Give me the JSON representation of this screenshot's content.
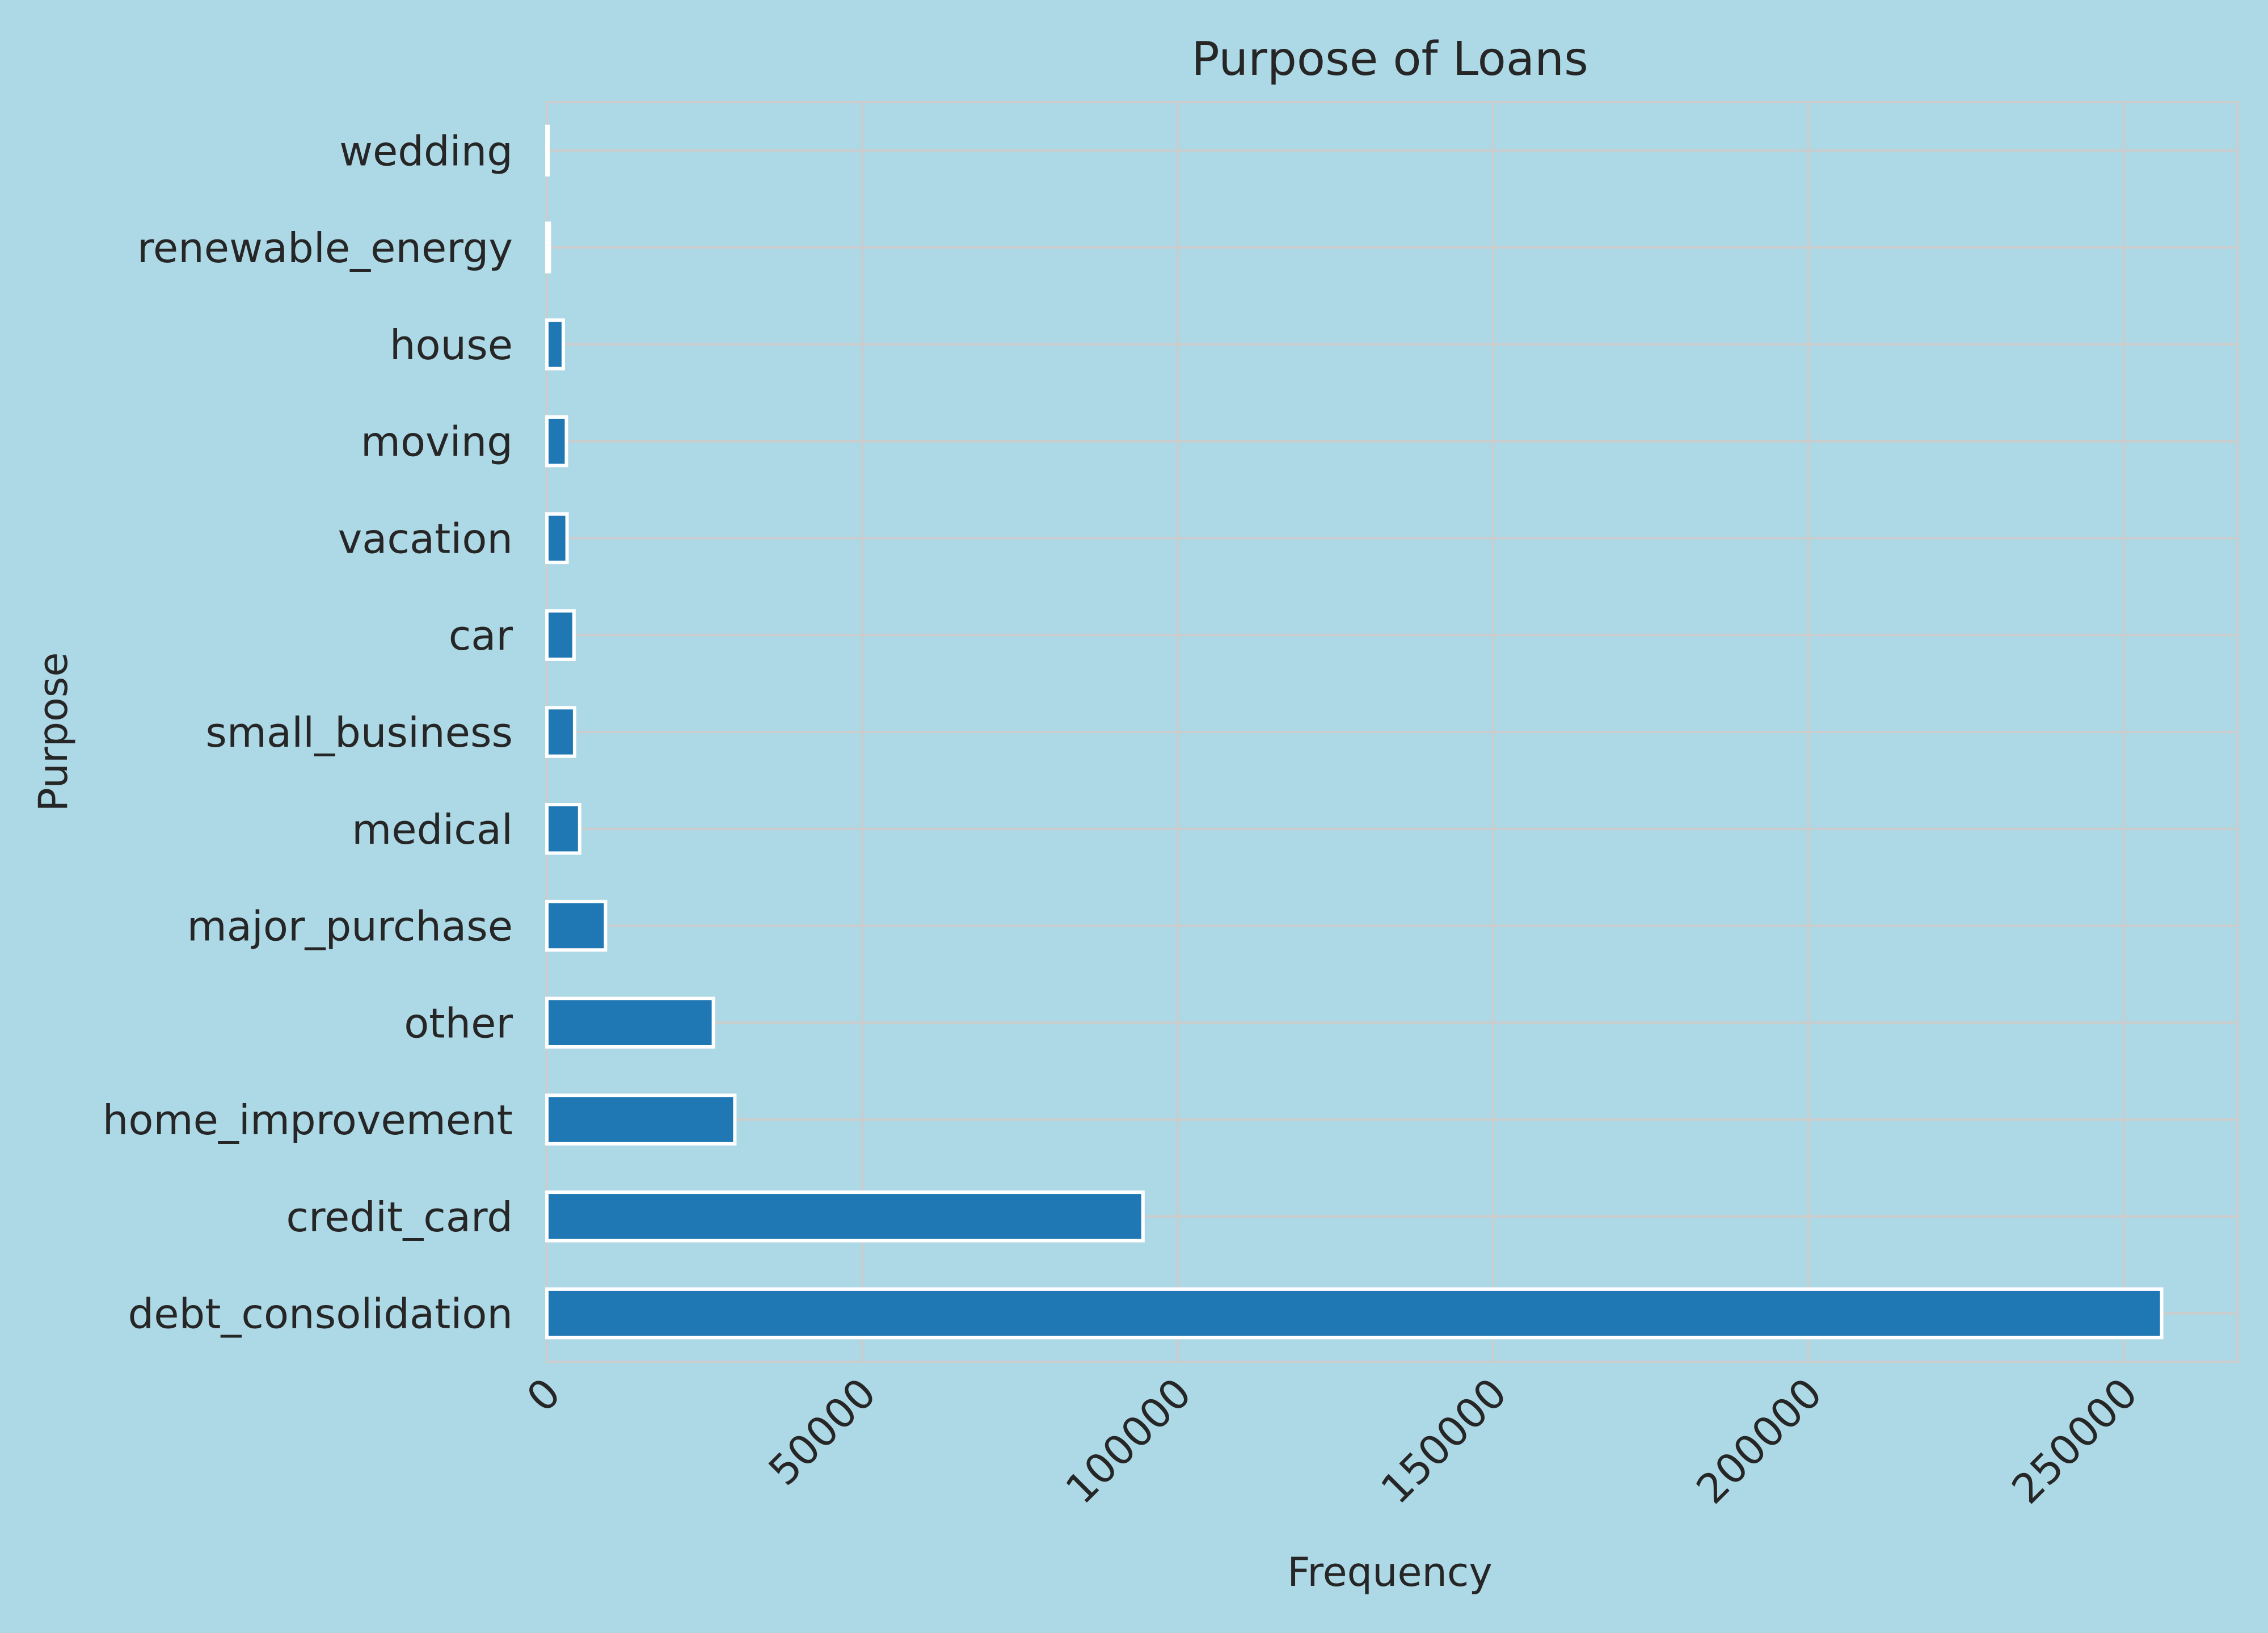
{
  "chart_data": {
    "type": "bar",
    "orientation": "horizontal",
    "title": "Purpose of Loans",
    "xlabel": "Frequency",
    "ylabel": "Purpose",
    "categories": [
      "debt_consolidation",
      "credit_card",
      "home_improvement",
      "other",
      "major_purchase",
      "medical",
      "small_business",
      "car",
      "vacation",
      "moving",
      "house",
      "renewable_energy",
      "wedding"
    ],
    "values": [
      256000,
      94500,
      29800,
      26400,
      9300,
      5200,
      4400,
      4300,
      3200,
      3100,
      2600,
      400,
      200
    ],
    "xlim": [
      0,
      268000
    ],
    "xticks": [
      0,
      50000,
      100000,
      150000,
      200000,
      250000
    ],
    "xtick_labels": [
      "0",
      "50000",
      "100000",
      "150000",
      "200000",
      "250000"
    ],
    "grid": true,
    "bar_color": "#1f77b4",
    "bar_edge_color": "#ffffff",
    "background_color": "#add8e6",
    "grid_color": "#cccccc"
  }
}
